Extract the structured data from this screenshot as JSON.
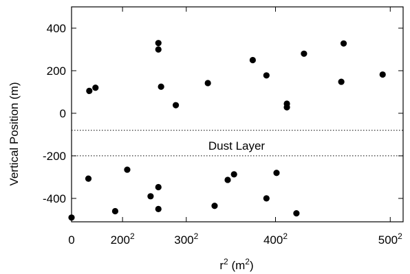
{
  "chart_data": {
    "type": "scatter",
    "title": "",
    "xlabel": {
      "base": "r",
      "base_sup": "2",
      "units_open": " (m",
      "units_sup": "2",
      "units_close": ")"
    },
    "ylabel": "Vertical Position (m)",
    "x_scale": "squared",
    "x_domain_r": [
      0,
      510
    ],
    "ylim": [
      -510,
      500
    ],
    "x_ticks": [
      {
        "r": 0,
        "label": "0",
        "sup": ""
      },
      {
        "r": 200,
        "label": "200",
        "sup": "2"
      },
      {
        "r": 300,
        "label": "300",
        "sup": "2"
      },
      {
        "r": 400,
        "label": "400",
        "sup": "2"
      },
      {
        "r": 500,
        "label": "500",
        "sup": "2"
      }
    ],
    "y_ticks": [
      {
        "value": 400,
        "label": "400"
      },
      {
        "value": 200,
        "label": "200"
      },
      {
        "value": 0,
        "label": "0"
      },
      {
        "value": -200,
        "label": "-200"
      },
      {
        "value": -400,
        "label": "-400"
      }
    ],
    "reference_lines": [
      {
        "y": -80,
        "style": "dotted"
      },
      {
        "y": -200,
        "style": "dotted"
      }
    ],
    "annotation": {
      "text": "Dust Layer",
      "y": -140
    },
    "marker_color": "#000000",
    "points": [
      {
        "r": 118,
        "y": 105
      },
      {
        "r": 137,
        "y": 120
      },
      {
        "r": 261,
        "y": 330
      },
      {
        "r": 261,
        "y": 300
      },
      {
        "r": 265,
        "y": 125
      },
      {
        "r": 286,
        "y": 38
      },
      {
        "r": 327,
        "y": 142
      },
      {
        "r": 377,
        "y": 250
      },
      {
        "r": 391,
        "y": 178
      },
      {
        "r": 411,
        "y": 45
      },
      {
        "r": 411,
        "y": 28
      },
      {
        "r": 427,
        "y": 280
      },
      {
        "r": 462,
        "y": 328
      },
      {
        "r": 460,
        "y": 148
      },
      {
        "r": 494,
        "y": 182
      },
      {
        "r": 0,
        "y": -490
      },
      {
        "r": 115,
        "y": -307
      },
      {
        "r": 185,
        "y": -460
      },
      {
        "r": 209,
        "y": -265
      },
      {
        "r": 249,
        "y": -390
      },
      {
        "r": 261,
        "y": -347
      },
      {
        "r": 261,
        "y": -450
      },
      {
        "r": 335,
        "y": -435
      },
      {
        "r": 350,
        "y": -313
      },
      {
        "r": 357,
        "y": -287
      },
      {
        "r": 391,
        "y": -400
      },
      {
        "r": 401,
        "y": -280
      },
      {
        "r": 420,
        "y": -470
      }
    ]
  }
}
